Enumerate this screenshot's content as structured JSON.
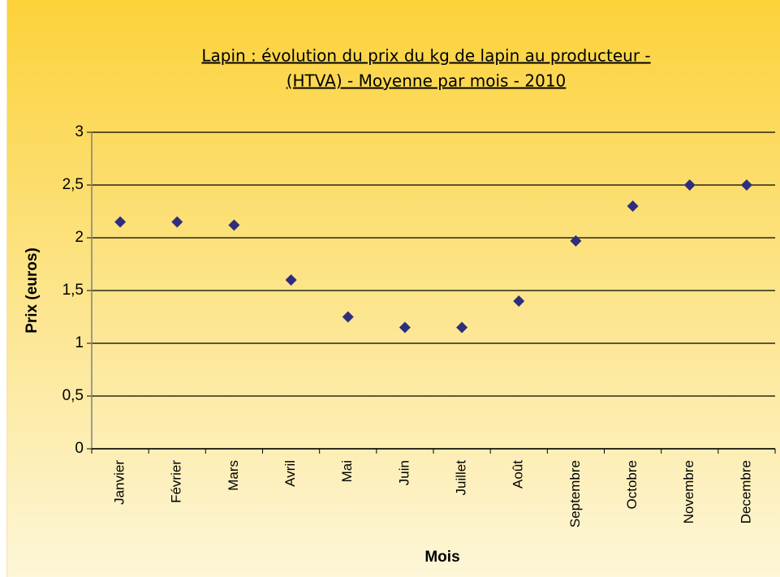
{
  "chart_data": {
    "type": "scatter",
    "title": [
      "Lapin : évolution du prix du kg de lapin au producteur -",
      "(HTVA) - Moyenne par mois - 2010"
    ],
    "x_label": "Mois",
    "y_label": "Prix (euros)",
    "categories": [
      "Janvier",
      "Février",
      "Mars",
      "Avril",
      "Mai",
      "Juin",
      "Juillet",
      "Août",
      "Septembre",
      "Octobre",
      "Novembre",
      "Decembre"
    ],
    "values": [
      2.15,
      2.15,
      2.12,
      1.6,
      1.25,
      1.15,
      1.15,
      1.4,
      1.97,
      2.3,
      2.5,
      2.5
    ],
    "color": "#2e2e7e",
    "ylim": [
      0,
      3
    ],
    "yticks": [
      0,
      {
        "value": 0.5,
        "label": "0,5"
      },
      1,
      {
        "value": 1.5,
        "label": "1,5"
      },
      2,
      {
        "value": 2.5,
        "label": "2,5"
      },
      3
    ],
    "grid": true
  }
}
